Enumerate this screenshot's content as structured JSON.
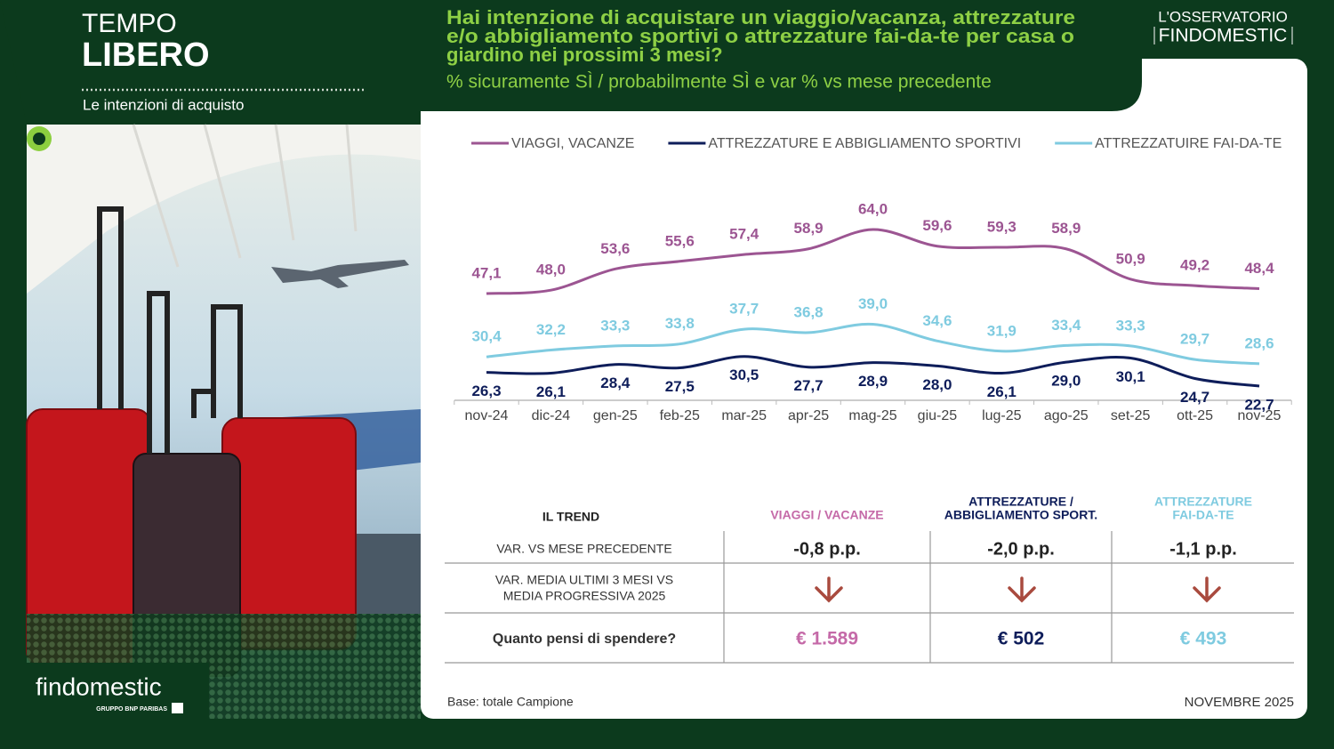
{
  "header": {
    "line1": "TEMPO",
    "line2": "LIBERO",
    "section": "Le intenzioni di acquisto"
  },
  "brand": {
    "top": "L'OSSERVATORIO",
    "bottom": "FINDOMESTIC"
  },
  "chart_data": {
    "type": "line",
    "title_lines": [
      "Hai intenzione di acquistare un viaggio/vacanza, attrezzature",
      "e/o abbigliamento sportivi o attrezzature fai-da-te per casa o",
      "giardino nei prossimi 3 mesi?"
    ],
    "subtitle": "% sicuramente SÌ / probabilmente SÌ e var % vs mese precedente",
    "categories": [
      "nov-24",
      "dic-24",
      "gen-25",
      "feb-25",
      "mar-25",
      "apr-25",
      "mag-25",
      "giu-25",
      "lug-25",
      "ago-25",
      "set-25",
      "ott-25",
      "nov-25"
    ],
    "series": [
      {
        "name": "VIAGGI, VACANZE",
        "color": "#9c5592",
        "label_side": "above",
        "values": [
          47.1,
          48.0,
          53.6,
          55.6,
          57.4,
          58.9,
          64.0,
          59.6,
          59.3,
          58.9,
          50.9,
          49.2,
          48.4
        ],
        "value_labels": [
          "47,1",
          "48,0",
          "53,6",
          "55,6",
          "57,4",
          "58,9",
          "64,0",
          "59,6",
          "59,3",
          "58,9",
          "50,9",
          "49,2",
          "48,4"
        ]
      },
      {
        "name": "ATTREZZATURE E ABBIGLIAMENTO SPORTIVI",
        "color": "#0e1d5a",
        "label_side": "below",
        "values": [
          26.3,
          26.1,
          28.4,
          27.5,
          30.5,
          27.7,
          28.9,
          28.0,
          26.1,
          29.0,
          30.1,
          24.7,
          22.7
        ],
        "value_labels": [
          "26,3",
          "26,1",
          "28,4",
          "27,5",
          "30,5",
          "27,7",
          "28,9",
          "28,0",
          "26,1",
          "29,0",
          "30,1",
          "24,7",
          "22,7"
        ]
      },
      {
        "name": "ATTREZZATUIRE FAI-DA-TE",
        "color": "#7fcbe0",
        "label_side": "above",
        "values": [
          30.4,
          32.2,
          33.3,
          33.8,
          37.7,
          36.8,
          39.0,
          34.6,
          31.9,
          33.4,
          33.3,
          29.7,
          28.6
        ],
        "value_labels": [
          "30,4",
          "32,2",
          "33,3",
          "33,8",
          "37,7",
          "36,8",
          "39,0",
          "34,6",
          "31,9",
          "33,4",
          "33,3",
          "29,7",
          "28,6"
        ]
      }
    ]
  },
  "table": {
    "title": "IL TREND",
    "columns": [
      {
        "lines": [
          "VIAGGI / VACANZE"
        ],
        "color": "#c56aa8"
      },
      {
        "lines": [
          "ATTREZZATURE /",
          "ABBIGLIAMENTO SPORT."
        ],
        "color": "#0e1d5a"
      },
      {
        "lines": [
          "ATTREZZATURE",
          "FAI-DA-TE"
        ],
        "color": "#7fcbe0"
      }
    ],
    "rows": [
      {
        "label_lines": [
          "VAR. VS MESE PRECEDENTE"
        ],
        "cells": [
          "-0,8 p.p.",
          "-2,0 p.p.",
          "-1,1 p.p."
        ]
      },
      {
        "label_lines": [
          "VAR.  MEDIA ULTIMI 3 MESI VS",
          "MEDIA PROGRESSIVA  2025"
        ],
        "cells": null
      },
      {
        "label_lines": [
          "Quanto pensi di spendere?"
        ],
        "cells": [
          "€ 1.589",
          "€ 502",
          "€ 493"
        ]
      }
    ]
  },
  "footer": {
    "base": "Base: totale Campione",
    "date": "NOVEMBRE 2025",
    "logo": "findomestic",
    "group": "GRUPPO BNP PARIBAS"
  }
}
